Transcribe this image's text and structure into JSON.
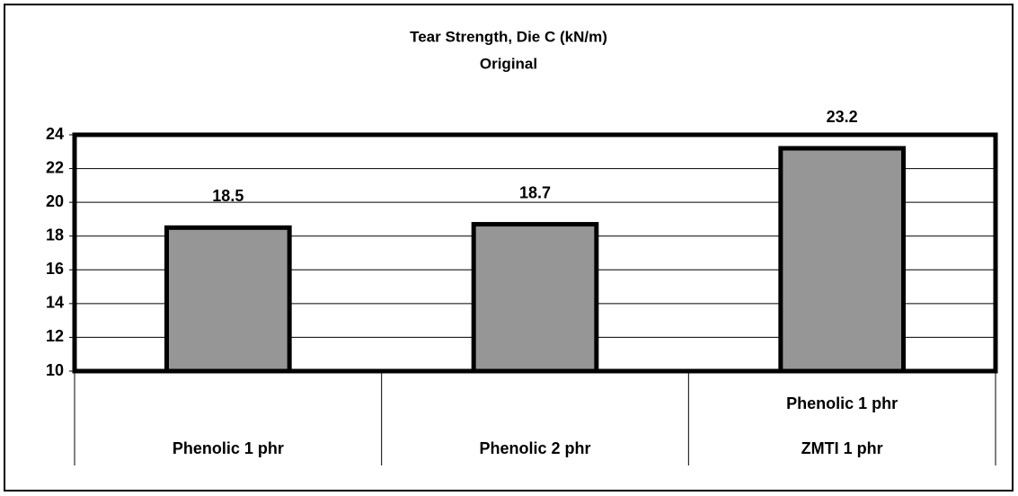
{
  "chart_data": {
    "type": "bar",
    "title": "Tear Strength, Die C (kN/m)",
    "subtitle": "Original",
    "categories": [
      [
        "Phenolic 1 phr"
      ],
      [
        "Phenolic 2 phr"
      ],
      [
        "Phenolic 1 phr",
        "ZMTI 1 phr"
      ]
    ],
    "values": [
      18.5,
      18.7,
      23.2
    ],
    "color": "#969696",
    "ylim": [
      10,
      24
    ],
    "yticks": [
      10,
      12,
      14,
      16,
      18,
      20,
      22,
      24
    ],
    "grid": true
  }
}
